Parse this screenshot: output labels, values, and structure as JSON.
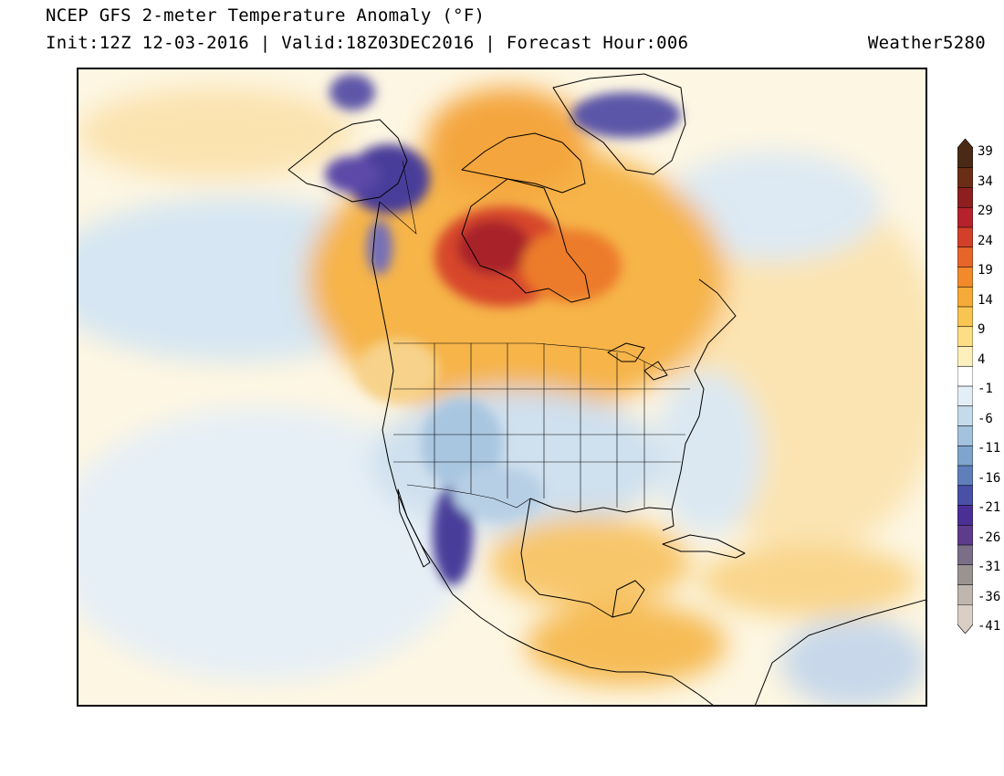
{
  "header": {
    "title": "NCEP GFS 2-meter Temperature Anomaly (°F)",
    "subtitle": "Init:12Z 12-03-2016 | Valid:18Z03DEC2016 | Forecast Hour:006",
    "brand": "Weather5280"
  },
  "colorbar": {
    "labels": [
      "39",
      "34",
      "29",
      "24",
      "19",
      "14",
      "9",
      "4",
      "-1",
      "-6",
      "-11",
      "-16",
      "-21",
      "-26",
      "-31",
      "-36",
      "-41"
    ],
    "colors": [
      "#4a2a14",
      "#6a2e16",
      "#8e1f1f",
      "#b5222c",
      "#d2402a",
      "#e8652a",
      "#f28a2c",
      "#f6aa37",
      "#f8c553",
      "#fbde86",
      "#fdf0bd",
      "#ffffff",
      "#e4eef6",
      "#c5dbeb",
      "#a3c2dd",
      "#7fa5cc",
      "#5f7fbb",
      "#4950a6",
      "#4a2f95",
      "#5d3c8c",
      "#7a6f86",
      "#9a9491",
      "#beb6af",
      "#d9cfc6"
    ]
  },
  "regions": [
    {
      "name": "canada-warm-anomaly",
      "color": "#f3a33c"
    },
    {
      "name": "hudson-bay-hot-core",
      "color": "#c93a2a"
    },
    {
      "name": "alaska-cold-anomaly",
      "color": "#4a3d9a"
    },
    {
      "name": "greenland-cold-anomaly",
      "color": "#5c56a8"
    },
    {
      "name": "us-cool-anomaly",
      "color": "#c5d9ea"
    },
    {
      "name": "mexico-cold-anomaly",
      "color": "#4a3d9a"
    },
    {
      "name": "pacific-cool-ocean",
      "color": "#d9e7f2"
    },
    {
      "name": "atlantic-warm-ocean",
      "color": "#fbe0a4"
    },
    {
      "name": "gulf-warm",
      "color": "#f8c66a"
    },
    {
      "name": "central-america-warm",
      "color": "#f4b74a"
    }
  ]
}
